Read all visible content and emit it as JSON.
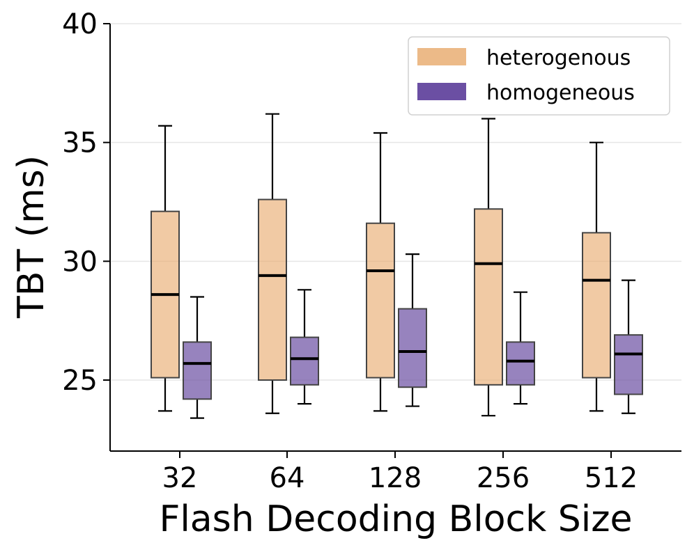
{
  "chart_data": {
    "type": "boxplot",
    "title": "",
    "xlabel": "Flash Decoding Block Size",
    "ylabel": "TBT (ms)",
    "categories": [
      "32",
      "64",
      "128",
      "256",
      "512"
    ],
    "ylim": [
      22,
      40
    ],
    "yticks": [
      25,
      30,
      35,
      40
    ],
    "grid": true,
    "legend_position": "top-right",
    "series": [
      {
        "name": "heterogenous",
        "color": "#E9AE73",
        "fill_opacity": 0.65,
        "boxes": [
          {
            "whislo": 23.7,
            "q1": 25.1,
            "med": 28.6,
            "q3": 32.1,
            "whishi": 35.7
          },
          {
            "whislo": 23.6,
            "q1": 25.0,
            "med": 29.4,
            "q3": 32.6,
            "whishi": 36.2
          },
          {
            "whislo": 23.7,
            "q1": 25.1,
            "med": 29.6,
            "q3": 31.6,
            "whishi": 35.4
          },
          {
            "whislo": 23.5,
            "q1": 24.8,
            "med": 29.9,
            "q3": 32.2,
            "whishi": 36.0
          },
          {
            "whislo": 23.7,
            "q1": 25.1,
            "med": 29.2,
            "q3": 31.2,
            "whishi": 35.0
          }
        ]
      },
      {
        "name": "homogeneous",
        "color": "#6B4FA3",
        "fill_opacity": 0.7,
        "boxes": [
          {
            "whislo": 23.4,
            "q1": 24.2,
            "med": 25.7,
            "q3": 26.6,
            "whishi": 28.5
          },
          {
            "whislo": 24.0,
            "q1": 24.8,
            "med": 25.9,
            "q3": 26.8,
            "whishi": 28.8
          },
          {
            "whislo": 23.9,
            "q1": 24.7,
            "med": 26.2,
            "q3": 28.0,
            "whishi": 30.3
          },
          {
            "whislo": 24.0,
            "q1": 24.8,
            "med": 25.8,
            "q3": 26.6,
            "whishi": 28.7
          },
          {
            "whislo": 23.6,
            "q1": 24.4,
            "med": 26.1,
            "q3": 26.9,
            "whishi": 29.2
          }
        ]
      }
    ]
  }
}
